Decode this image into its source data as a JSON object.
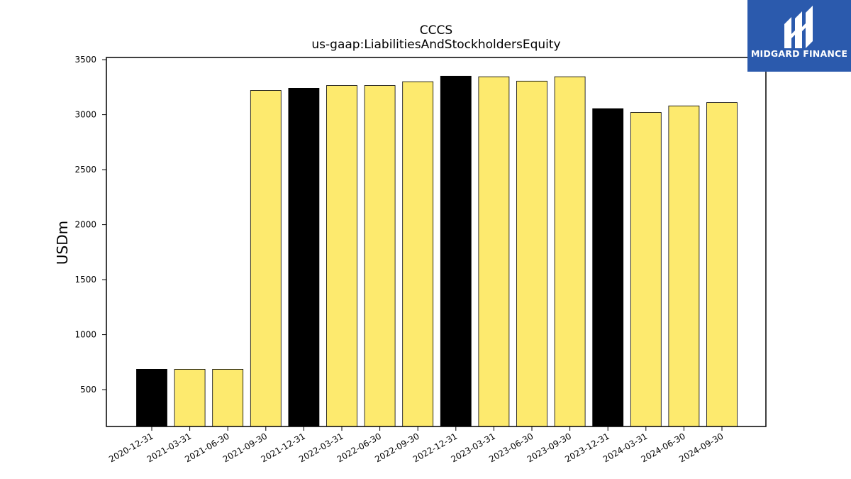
{
  "brand": {
    "name": "MIDGARD FINANCE",
    "background": "#2b5aad"
  },
  "chart_data": {
    "type": "bar",
    "title": "CCCS",
    "subtitle": "us-gaap:LiabilitiesAndStockholdersEquity",
    "xlabel": "",
    "ylabel": "USDm",
    "ylim": [
      165,
      3520
    ],
    "yticks": [
      500,
      1000,
      1500,
      2000,
      2500,
      3000,
      3500
    ],
    "grid": false,
    "categories": [
      "2020-12-31",
      "2021-03-31",
      "2021-06-30",
      "2021-09-30",
      "2021-12-31",
      "2022-03-31",
      "2022-06-30",
      "2022-09-30",
      "2022-12-31",
      "2023-03-31",
      "2023-06-30",
      "2023-09-30",
      "2023-12-31",
      "2024-03-31",
      "2024-06-30",
      "2024-09-30"
    ],
    "values": [
      685,
      685,
      685,
      3220,
      3240,
      3265,
      3265,
      3300,
      3350,
      3345,
      3305,
      3345,
      3055,
      3020,
      3080,
      3110
    ],
    "annual_color": "#000000",
    "quarter_color": "#fdea6e",
    "bar_colors": [
      "#000000",
      "#fdea6e",
      "#fdea6e",
      "#fdea6e",
      "#000000",
      "#fdea6e",
      "#fdea6e",
      "#fdea6e",
      "#000000",
      "#fdea6e",
      "#fdea6e",
      "#fdea6e",
      "#000000",
      "#fdea6e",
      "#fdea6e",
      "#fdea6e"
    ]
  }
}
